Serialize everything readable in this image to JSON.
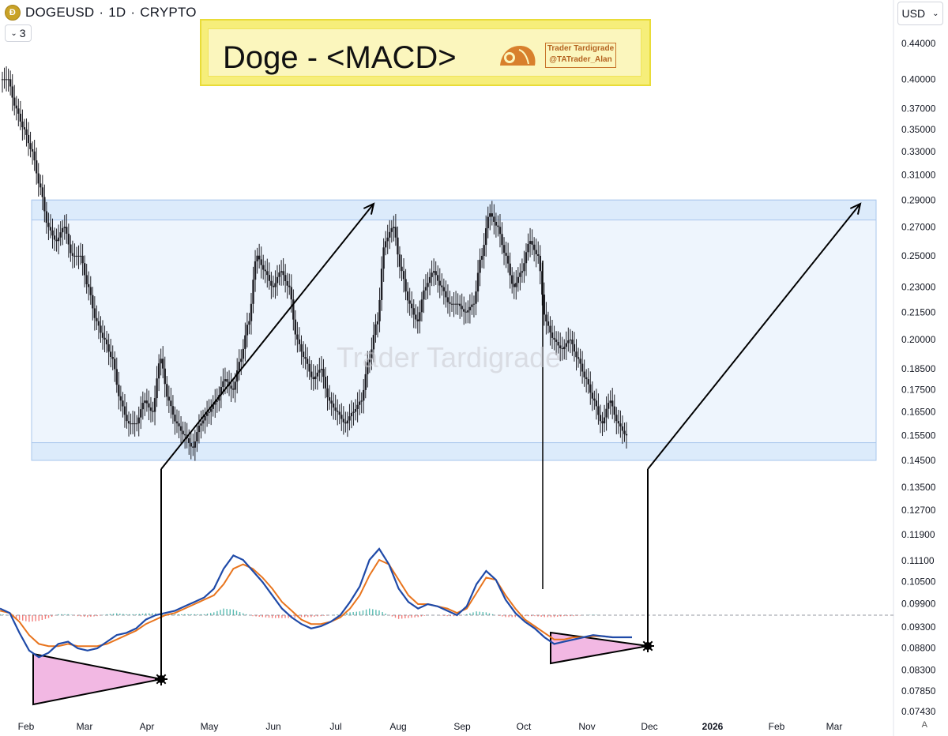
{
  "header": {
    "symbol": "DOGEUSD",
    "interval": "1D",
    "exchange": "CRYPTO",
    "separator": "·"
  },
  "indicator_button": {
    "chevron": "chevron-down-icon",
    "count": "3"
  },
  "currency_button": {
    "label": "USD",
    "chevron": "chevron-down-icon"
  },
  "banner": {
    "title": "Doge - <MACD>",
    "tag_line1": "Trader Tardigrade",
    "tag_line2": "@TATrader_Alan",
    "logo_icon": "tardigrade-logo-icon"
  },
  "watermark": "Trader Tardigrade",
  "corner_label": "A",
  "colors": {
    "macd_line": "#1f4aa8",
    "signal_line": "#e8741d",
    "hist_pos": "#26a69a",
    "hist_neg": "#ef5350",
    "range_box": "#dcebfb",
    "triangle_fill": "#f2b8e3",
    "banner_bg": "#f6ee7a"
  },
  "chart_data": [
    {
      "type": "candlestick",
      "scale": "log",
      "y_ticks": [
        "0.44000",
        "0.40000",
        "0.37000",
        "0.35000",
        "0.33000",
        "0.31000",
        "0.29000",
        "0.27000",
        "0.25000",
        "0.23000",
        "0.21500",
        "0.20000",
        "0.18500",
        "0.17500",
        "0.16500",
        "0.15500",
        "0.14500",
        "0.13500",
        "0.12700",
        "0.11900",
        "0.11100",
        "0.10500",
        "0.09900",
        "0.09300",
        "0.08800",
        "0.08300",
        "0.07850",
        "0.07430"
      ],
      "x_ticks": [
        "Feb",
        "Mar",
        "Apr",
        "May",
        "Jun",
        "Jul",
        "Aug",
        "Sep",
        "Oct",
        "Nov",
        "Dec",
        "2026",
        "Feb",
        "Mar"
      ],
      "series_closes": [
        0.4,
        0.37,
        0.35,
        0.33,
        0.3,
        0.27,
        0.26,
        0.27,
        0.25,
        0.25,
        0.23,
        0.21,
        0.2,
        0.19,
        0.17,
        0.16,
        0.16,
        0.17,
        0.165,
        0.19,
        0.17,
        0.16,
        0.155,
        0.15,
        0.16,
        0.165,
        0.17,
        0.18,
        0.175,
        0.19,
        0.21,
        0.25,
        0.24,
        0.23,
        0.24,
        0.23,
        0.2,
        0.19,
        0.18,
        0.185,
        0.17,
        0.165,
        0.16,
        0.165,
        0.17,
        0.19,
        0.21,
        0.26,
        0.27,
        0.24,
        0.22,
        0.21,
        0.23,
        0.24,
        0.23,
        0.22,
        0.22,
        0.215,
        0.22,
        0.25,
        0.28,
        0.27,
        0.25,
        0.23,
        0.24,
        0.26,
        0.25,
        0.21,
        0.2,
        0.195,
        0.2,
        0.19,
        0.18,
        0.17,
        0.16,
        0.17,
        0.16,
        0.155
      ],
      "zones": [
        {
          "name": "range-top-band",
          "low": 0.275,
          "high": 0.29
        },
        {
          "name": "range-bottom-band",
          "low": 0.145,
          "high": 0.152
        }
      ]
    },
    {
      "type": "macd",
      "macd": [
        0.3,
        0.1,
        -0.8,
        -1.6,
        -1.9,
        -1.7,
        -1.3,
        -1.2,
        -1.5,
        -1.6,
        -1.5,
        -1.2,
        -0.9,
        -0.8,
        -0.6,
        -0.2,
        0.0,
        0.1,
        0.2,
        0.4,
        0.6,
        0.8,
        1.2,
        2.1,
        2.7,
        2.5,
        2.0,
        1.5,
        0.9,
        0.3,
        -0.1,
        -0.4,
        -0.6,
        -0.5,
        -0.3,
        0.0,
        0.6,
        1.3,
        2.5,
        3.0,
        2.3,
        1.2,
        0.6,
        0.3,
        0.5,
        0.4,
        0.2,
        0.0,
        0.4,
        1.4,
        2.0,
        1.6,
        0.7,
        0.1,
        -0.3,
        -0.6,
        -1.0,
        -1.3,
        -1.2,
        -1.1,
        -1.0,
        -0.9,
        -0.95,
        -1.0,
        -1.0,
        -1.0
      ],
      "signal": [
        0.2,
        0.1,
        -0.3,
        -0.9,
        -1.3,
        -1.4,
        -1.4,
        -1.3,
        -1.4,
        -1.4,
        -1.4,
        -1.3,
        -1.1,
        -0.9,
        -0.7,
        -0.4,
        -0.2,
        0.0,
        0.1,
        0.3,
        0.5,
        0.7,
        0.9,
        1.4,
        2.1,
        2.3,
        2.1,
        1.7,
        1.2,
        0.6,
        0.2,
        -0.2,
        -0.4,
        -0.4,
        -0.3,
        -0.1,
        0.3,
        0.9,
        1.8,
        2.5,
        2.3,
        1.6,
        0.9,
        0.5,
        0.5,
        0.4,
        0.3,
        0.1,
        0.3,
        1.0,
        1.7,
        1.6,
        0.9,
        0.3,
        -0.2,
        -0.5,
        -0.8,
        -1.1,
        -1.1,
        -1.0,
        -1.0,
        -0.95,
        -0.95,
        -1.0,
        -1.0,
        -1.0
      ]
    }
  ]
}
